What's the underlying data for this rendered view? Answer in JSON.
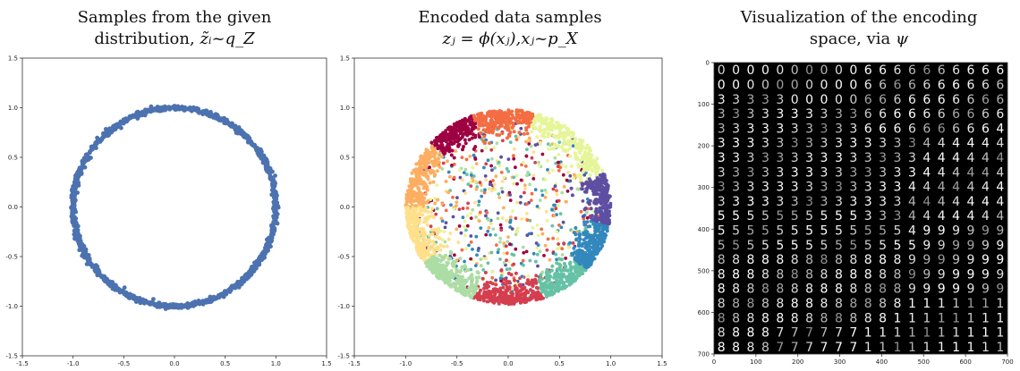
{
  "titles": {
    "panel1_line1": "Samples from the given",
    "panel1_line2": "distribution, ",
    "panel1_math": "z̃ᵢ~q_Z",
    "panel2_line1": "Encoded data samples",
    "panel2_math": "zⱼ = ϕ(xⱼ),xⱼ~p_X",
    "panel3_line1": "Visualization of the encoding",
    "panel3_line2": "space, via ",
    "panel3_math": "ψ"
  },
  "chart_data": [
    {
      "type": "scatter",
      "title": "Samples from the given distribution, z̃ᵢ~q_Z",
      "xlim": [
        -1.5,
        1.5
      ],
      "ylim": [
        -1.5,
        1.5
      ],
      "xticks": [
        "-1.5",
        "-1.0",
        "-0.5",
        "0.0",
        "0.5",
        "1.0",
        "1.5"
      ],
      "yticks": [
        "1.5",
        "1.0",
        "0.5",
        "0.0",
        "-0.5",
        "-1.0",
        "-1.5"
      ],
      "series": [
        {
          "color": "#4c72b0",
          "shape": "ring",
          "radius": 1.0
        }
      ]
    },
    {
      "type": "scatter",
      "title": "Encoded data samples zⱼ = ϕ(xⱼ),xⱼ~p_X",
      "xlim": [
        -1.5,
        1.5
      ],
      "ylim": [
        -1.5,
        1.5
      ],
      "xticks": [
        "-1.5",
        "-1.0",
        "-0.5",
        "0.0",
        "0.5",
        "1.0",
        "1.5"
      ],
      "yticks": [
        "1.5",
        "1.0",
        "0.5",
        "0.0",
        "-0.5",
        "-1.0",
        "-1.5"
      ],
      "clusters": [
        {
          "color": "#9e0142",
          "angle_from": 110,
          "angle_to": 140
        },
        {
          "color": "#d53e4f",
          "angle_from": 250,
          "angle_to": 290
        },
        {
          "color": "#f46d43",
          "angle_from": 75,
          "angle_to": 110
        },
        {
          "color": "#fdae61",
          "angle_from": 140,
          "angle_to": 180
        },
        {
          "color": "#fee08b",
          "angle_from": 180,
          "angle_to": 215
        },
        {
          "color": "#e6f598",
          "angle_from": 20,
          "angle_to": 75
        },
        {
          "color": "#abdda4",
          "angle_from": 215,
          "angle_to": 250
        },
        {
          "color": "#66c2a5",
          "angle_from": 290,
          "angle_to": 320
        },
        {
          "color": "#3288bd",
          "angle_from": 320,
          "angle_to": 350
        },
        {
          "color": "#5e4fa2",
          "angle_from": 350,
          "angle_to": 380
        }
      ]
    },
    {
      "type": "heatmap",
      "title": "Visualization of the encoding space, via ψ",
      "xlim": [
        0,
        700
      ],
      "ylim": [
        700,
        0
      ],
      "xticks": [
        "0",
        "100",
        "200",
        "300",
        "400",
        "500",
        "600",
        "700"
      ],
      "yticks": [
        "0",
        "100",
        "200",
        "300",
        "400",
        "500",
        "600",
        "700"
      ],
      "grid_rows": 20,
      "grid_cols": 20,
      "digit_rows": [
        "00000000006666666666",
        "00000000006666666666",
        "33333000006666666666",
        "33333333336666666666",
        "33333333336666666664",
        "33333333333333444444",
        "33333333333333444444",
        "33333333333333444444",
        "33333333333334444444",
        "33333333333334444444",
        "55555555553334444444",
        "55555555555554999999",
        "55555555555555999999",
        "88888888888889999999",
        "88888888888889999999",
        "88888888888889999999",
        "88888888888881111111",
        "88888888888811111111",
        "88887777771111111111",
        "88887777771111111111"
      ]
    }
  ]
}
